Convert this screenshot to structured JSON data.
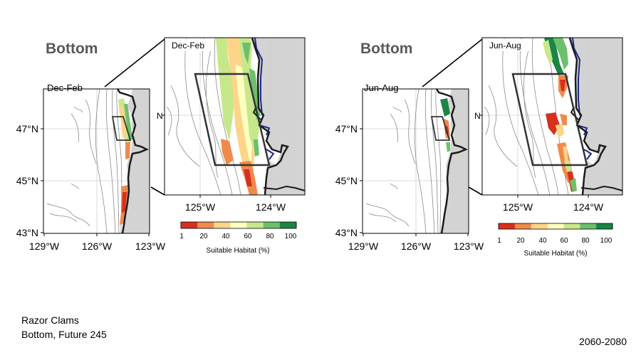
{
  "panels": [
    {
      "heading": "Bottom",
      "season_small": "Dec-Feb",
      "season_zoom": "Dec-Feb",
      "overview_lat_labels": [
        "47°N",
        "45°N",
        "43°N"
      ],
      "overview_lon_labels": [
        "129°W",
        "126°W",
        "123°W"
      ],
      "zoom_lon_labels": [
        "125°W",
        "124°W"
      ],
      "zoom_lat_label_fragment": "N",
      "colorbar_ticks": [
        "1",
        "20",
        "40",
        "60",
        "80",
        "100"
      ],
      "colorbar_label": "Suitable Habitat (%)"
    },
    {
      "heading": "Bottom",
      "season_small": "Jun-Aug",
      "season_zoom": "Jun-Aug",
      "overview_lat_labels": [
        "47°N",
        "45°N",
        "43°N"
      ],
      "overview_lon_labels": [
        "129°W",
        "126°W",
        "123°W"
      ],
      "zoom_lon_labels": [
        "125°W",
        "124°W"
      ],
      "zoom_lat_label_fragment": "N",
      "colorbar_ticks": [
        "1",
        "20",
        "40",
        "60",
        "80",
        "100"
      ],
      "colorbar_label": "Suitable Habitat (%)"
    }
  ],
  "colorbar_colors": [
    "#d7301f",
    "#f08a4b",
    "#fdd48a",
    "#ffffbf",
    "#c7e78b",
    "#6cc06b",
    "#1a8544"
  ],
  "colors": {
    "land": "#d3d3d3",
    "coast": "#222222",
    "river": "#1c2a8c",
    "contour": "#8a8a8a",
    "box": "#333333"
  },
  "footer": {
    "species": "Razor Clams",
    "scenario": "Bottom, Future 245",
    "period": "2060-2080"
  }
}
